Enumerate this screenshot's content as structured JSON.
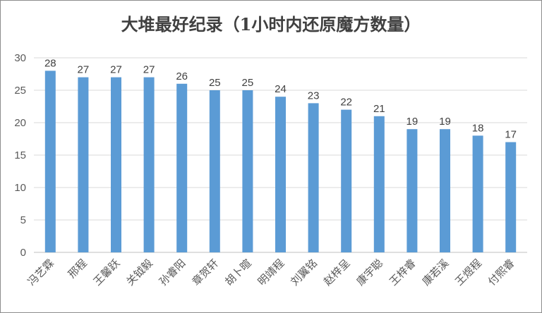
{
  "chart_data": {
    "type": "bar",
    "title": "大堆最好纪录（1小时内还原魔方数量）",
    "xlabel": "",
    "ylabel": "",
    "categories": [
      "冯艺霖",
      "邢程",
      "王馨跃",
      "关钺毅",
      "孙睿阳",
      "章贺轩",
      "胡卜暄",
      "明靖程",
      "刘翼铭",
      "赵梓呈",
      "康宇聪",
      "王梓睿",
      "康若溪",
      "王煜程",
      "付熙睿"
    ],
    "values": [
      28,
      27,
      27,
      27,
      26,
      25,
      25,
      24,
      23,
      22,
      21,
      19,
      19,
      18,
      17
    ],
    "ylim": [
      0,
      30
    ],
    "yticks": [
      0,
      5,
      10,
      15,
      20,
      25,
      30
    ],
    "grid": true,
    "legend": "none",
    "bar_color": "#5b9bd5",
    "grid_color": "#d9d9d9",
    "axis_color": "#bfbfbf"
  }
}
